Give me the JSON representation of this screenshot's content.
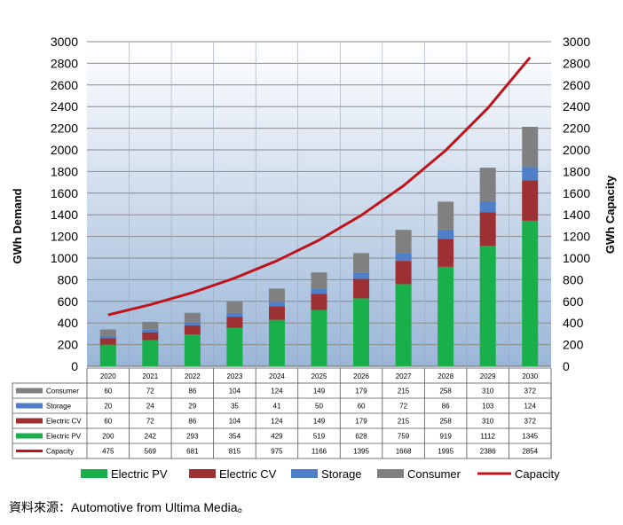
{
  "chart_data": {
    "type": "bar",
    "stacked": true,
    "categories": [
      "2020",
      "2021",
      "2022",
      "2023",
      "2024",
      "2025",
      "2026",
      "2027",
      "2028",
      "2029",
      "2030"
    ],
    "series": [
      {
        "name": "Electric PV",
        "color": "#19b04b",
        "values": [
          200,
          242,
          293,
          354,
          429,
          519,
          628,
          759,
          919,
          1112,
          1345
        ]
      },
      {
        "name": "Electric CV",
        "color": "#9c3033",
        "values": [
          60,
          72,
          86,
          104,
          124,
          149,
          179,
          215,
          258,
          310,
          372
        ]
      },
      {
        "name": "Storage",
        "color": "#4f7fc8",
        "values": [
          20,
          24,
          29,
          35,
          41,
          50,
          60,
          72,
          86,
          103,
          124
        ]
      },
      {
        "name": "Consumer",
        "color": "#808080",
        "values": [
          60,
          72,
          86,
          104,
          124,
          149,
          179,
          215,
          258,
          310,
          372
        ]
      }
    ],
    "line_series": {
      "name": "Capacity",
      "color": "#c0141c",
      "values": [
        475,
        569,
        681,
        815,
        975,
        1166,
        1395,
        1668,
        1995,
        2386,
        2854
      ]
    },
    "ylabel_left": "GWh Demand",
    "ylabel_right": "GWh Capacity",
    "ylim": [
      0,
      3000
    ],
    "yticks": [
      "0",
      "200",
      "400",
      "600",
      "800",
      "1000",
      "1200",
      "1400",
      "1600",
      "1800",
      "2000",
      "2200",
      "2400",
      "2600",
      "2800",
      "3000"
    ],
    "table_rows": [
      {
        "label": "Consumer",
        "series": "Consumer"
      },
      {
        "label": "Storage",
        "series": "Storage"
      },
      {
        "label": "Electric CV",
        "series": "Electric CV"
      },
      {
        "label": "Electric PV",
        "series": "Electric PV"
      },
      {
        "label": "Capacity",
        "series": "Capacity"
      }
    ],
    "legend": [
      "Electric PV",
      "Electric CV",
      "Storage",
      "Consumer",
      "Capacity"
    ]
  },
  "source_text": "資料來源：Automotive from Ultima Media。"
}
